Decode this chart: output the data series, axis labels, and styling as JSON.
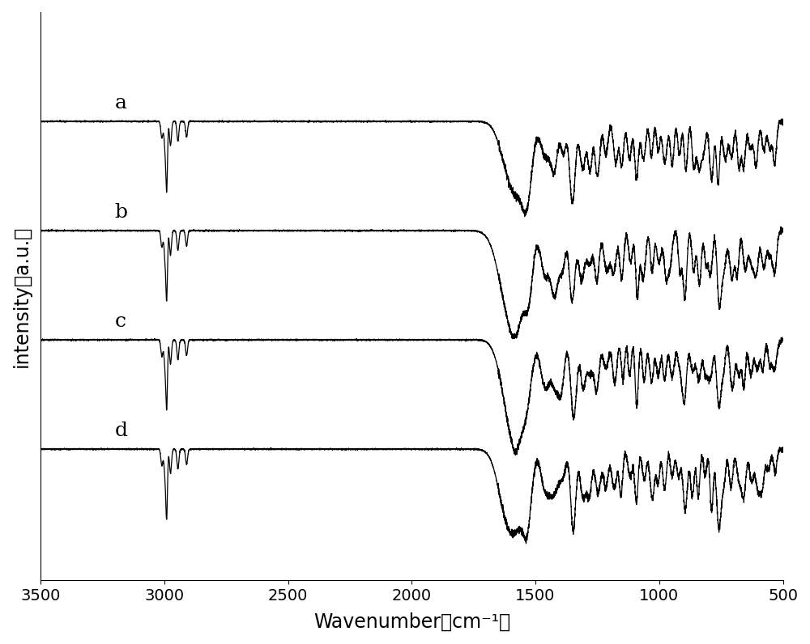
{
  "xlabel": "Wavenumber（cm⁻¹）",
  "ylabel": "intensity（a.u.）",
  "xlabel_fontsize": 17,
  "ylabel_fontsize": 17,
  "tick_fontsize": 14,
  "xlim": [
    3500,
    500
  ],
  "xticks": [
    3500,
    3000,
    2500,
    2000,
    1500,
    1000,
    500
  ],
  "background_color": "#ffffff",
  "line_color": "#000000",
  "labels": [
    "a",
    "b",
    "c",
    "d"
  ],
  "label_fontsize": 18,
  "offsets": [
    3.0,
    2.0,
    1.0,
    0.0
  ],
  "seed": 42
}
